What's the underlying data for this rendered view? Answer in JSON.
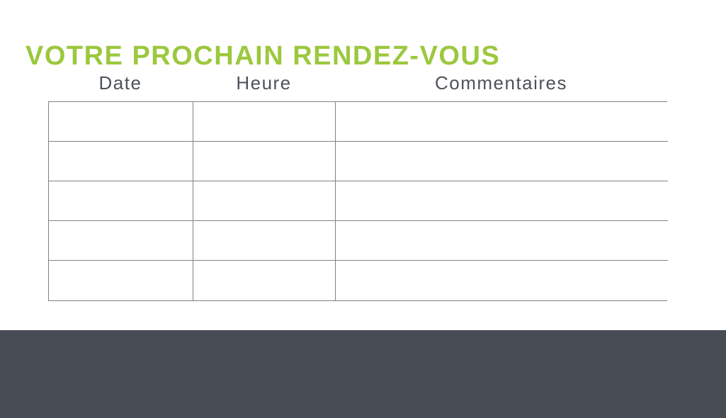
{
  "page": {
    "title": "VOTRE PROCHAIN RENDEZ-VOUS"
  },
  "table": {
    "columns": [
      {
        "label": "Date"
      },
      {
        "label": "Heure"
      },
      {
        "label": "Commentaires"
      }
    ],
    "rows": [
      [
        "",
        "",
        ""
      ],
      [
        "",
        "",
        ""
      ],
      [
        "",
        "",
        ""
      ],
      [
        "",
        "",
        ""
      ],
      [
        "",
        "",
        ""
      ]
    ]
  },
  "colors": {
    "title_green": "#9cc83e",
    "header_text": "#4d525b",
    "table_border": "#7d8187",
    "footer_dark": "#474b54"
  }
}
